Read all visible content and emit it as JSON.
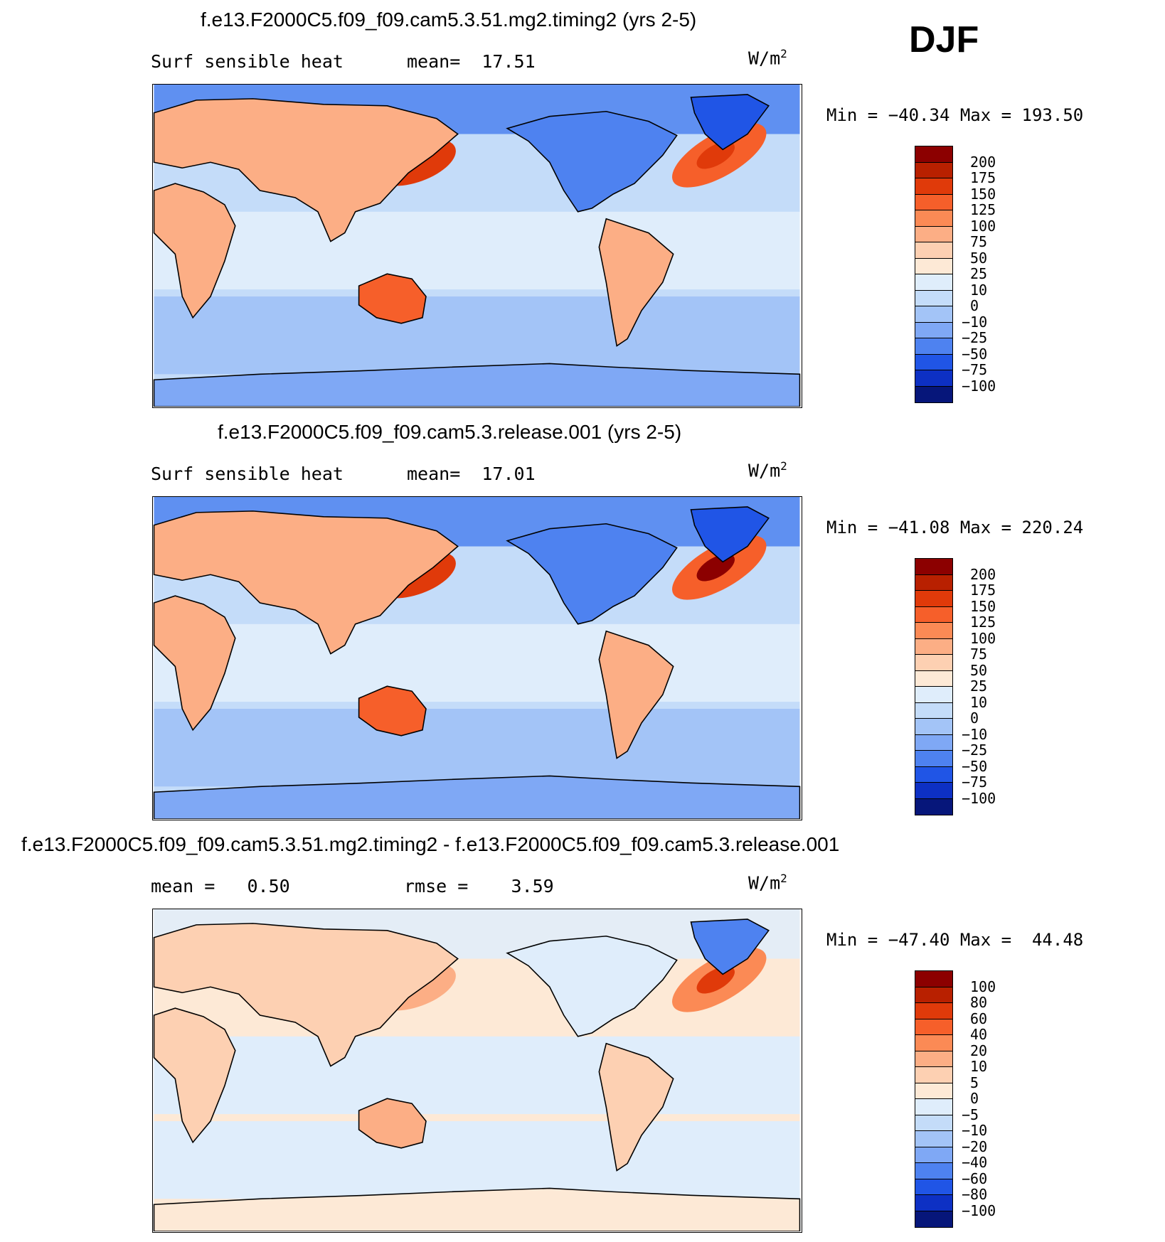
{
  "season": "DJF",
  "panels": [
    {
      "id": "top",
      "title": "f.e13.F2000C5.f09_f09.cam5.3.51.mg2.timing2 (yrs 2-5)",
      "left_label": "Surf sensible heat",
      "right_label": "mean=  17.51",
      "units": "W/m",
      "units_sup": "2",
      "minmax": "Min = −40.34 Max = 193.50",
      "colorbar": {
        "labels": [
          "200",
          "175",
          "150",
          "125",
          "100",
          "75",
          "50",
          "25",
          "10",
          "0",
          "−10",
          "−25",
          "−50",
          "−75",
          "−100"
        ],
        "colors": [
          "#8c0000",
          "#b82000",
          "#e03a0a",
          "#f65f2a",
          "#fb8a55",
          "#fcae85",
          "#fdd0b2",
          "#fde9d6",
          "#dfedfb",
          "#c4dcf9",
          "#a3c4f7",
          "#7fa8f5",
          "#4e82f0",
          "#2055e6",
          "#0d30c4",
          "#06167a"
        ]
      },
      "field_colors": {
        "ocean": "#c4dcf9",
        "ocean_south": "#a3c4f7",
        "antarctic": "#7fa8f5",
        "land_cold": "#4e82f0",
        "land_warm": "#fcae85",
        "land_hot": "#f65f2a",
        "kuroshio": "#e03a0a",
        "gulf": "#f65f2a",
        "gulf_core": "#e03a0a",
        "greenland": "#2055e6",
        "tropics": "#dfedfb"
      }
    },
    {
      "id": "mid",
      "title": "f.e13.F2000C5.f09_f09.cam5.3.release.001 (yrs 2-5)",
      "left_label": "Surf sensible heat",
      "right_label": "mean=  17.01",
      "units": "W/m",
      "units_sup": "2",
      "minmax": "Min = −41.08 Max = 220.24",
      "colorbar": {
        "labels": [
          "200",
          "175",
          "150",
          "125",
          "100",
          "75",
          "50",
          "25",
          "10",
          "0",
          "−10",
          "−25",
          "−50",
          "−75",
          "−100"
        ],
        "colors": [
          "#8c0000",
          "#b82000",
          "#e03a0a",
          "#f65f2a",
          "#fb8a55",
          "#fcae85",
          "#fdd0b2",
          "#fde9d6",
          "#dfedfb",
          "#c4dcf9",
          "#a3c4f7",
          "#7fa8f5",
          "#4e82f0",
          "#2055e6",
          "#0d30c4",
          "#06167a"
        ]
      },
      "field_colors": {
        "ocean": "#c4dcf9",
        "ocean_south": "#a3c4f7",
        "antarctic": "#7fa8f5",
        "land_cold": "#4e82f0",
        "land_warm": "#fcae85",
        "land_hot": "#f65f2a",
        "kuroshio": "#e03a0a",
        "gulf": "#f65f2a",
        "gulf_core": "#8c0000",
        "greenland": "#2055e6",
        "tropics": "#dfedfb"
      }
    },
    {
      "id": "diff",
      "title": "f.e13.F2000C5.f09_f09.cam5.3.51.mg2.timing2 - f.e13.F2000C5.f09_f09.cam5.3.release.001",
      "left_label": "mean =   0.50",
      "right_label": "rmse =    3.59",
      "units": "W/m",
      "units_sup": "2",
      "minmax": "Min = −47.40 Max =  44.48",
      "colorbar": {
        "labels": [
          "100",
          "80",
          "60",
          "40",
          "20",
          "10",
          "5",
          "0",
          "−5",
          "−10",
          "−20",
          "−40",
          "−60",
          "−80",
          "−100"
        ],
        "colors": [
          "#8c0000",
          "#b82000",
          "#e03a0a",
          "#f65f2a",
          "#fb8a55",
          "#fcae85",
          "#fdd0b2",
          "#fde9d6",
          "#dfedfb",
          "#c4dcf9",
          "#a3c4f7",
          "#7fa8f5",
          "#4e82f0",
          "#2055e6",
          "#0d30c4",
          "#06167a"
        ]
      },
      "field_colors": {
        "ocean": "#fde9d6",
        "ocean_south": "#dfedfb",
        "antarctic": "#fde9d6",
        "land_cold": "#dfedfb",
        "land_warm": "#fdd0b2",
        "land_hot": "#fcae85",
        "kuroshio": "#fcae85",
        "gulf": "#fb8a55",
        "gulf_core": "#e03a0a",
        "greenland": "#4e82f0",
        "tropics": "#dfedfb"
      }
    }
  ]
}
